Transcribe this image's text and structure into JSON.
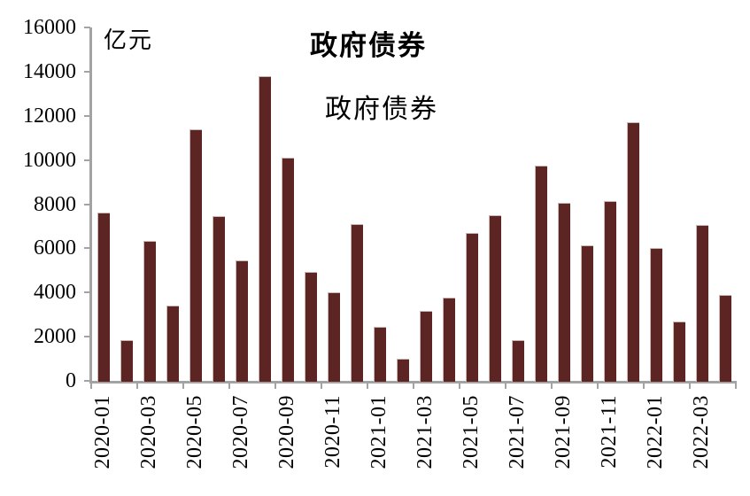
{
  "chart_data": {
    "type": "bar",
    "title": "政府债券",
    "unit_label": "亿元",
    "legend": [
      "政府债券"
    ],
    "legend_position": "top-center",
    "categories": [
      "2020-01",
      "2020-02",
      "2020-03",
      "2020-04",
      "2020-05",
      "2020-06",
      "2020-07",
      "2020-08",
      "2020-09",
      "2020-10",
      "2020-11",
      "2020-12",
      "2021-01",
      "2021-02",
      "2021-03",
      "2021-04",
      "2021-05",
      "2021-06",
      "2021-07",
      "2021-08",
      "2021-09",
      "2021-10",
      "2021-11",
      "2021-12",
      "2022-01",
      "2022-02",
      "2022-03",
      "2022-04"
    ],
    "values": [
      7600,
      1850,
      6350,
      3400,
      11400,
      7450,
      5450,
      13800,
      10100,
      4950,
      4000,
      7100,
      2450,
      1000,
      3150,
      3750,
      6700,
      7500,
      1850,
      9750,
      8050,
      6150,
      8150,
      11700,
      6000,
      2700,
      7050,
      3900
    ],
    "x_labels_shown": [
      "2020-01",
      "2020-03",
      "2020-05",
      "2020-07",
      "2020-09",
      "2020-11",
      "2021-01",
      "2021-03",
      "2021-05",
      "2021-07",
      "2021-09",
      "2021-11",
      "2022-01",
      "2022-03"
    ],
    "x_label_every": 2,
    "ylim": [
      0,
      16000
    ],
    "y_tick_step": 2000,
    "y_ticks": [
      0,
      2000,
      4000,
      6000,
      8000,
      10000,
      12000,
      14000,
      16000
    ],
    "grid": false,
    "bar_color": "#5C2423",
    "bar_edge_color": "#c9b9b5",
    "axis_color": "#a3a3a3",
    "text_color": "#000000"
  }
}
